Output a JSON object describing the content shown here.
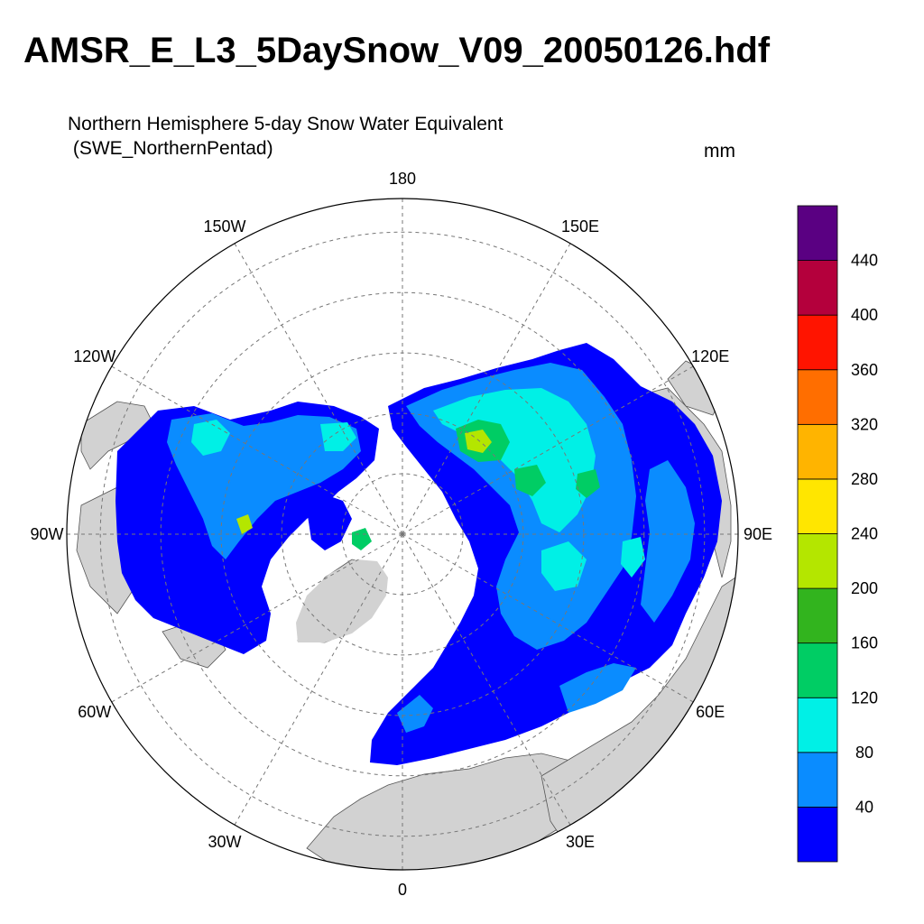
{
  "title": "AMSR_E_L3_5DaySnow_V09_20050126.hdf",
  "subtitle_line1": "Northern Hemisphere 5-day Snow Water Equivalent",
  "subtitle_line2": " (SWE_NorthernPentad)",
  "units": "mm",
  "longitude_labels": [
    {
      "text": "180",
      "lon": 180
    },
    {
      "text": "150E",
      "lon": 150
    },
    {
      "text": "120E",
      "lon": 120
    },
    {
      "text": "90E",
      "lon": 90
    },
    {
      "text": "60E",
      "lon": 60
    },
    {
      "text": "30E",
      "lon": 30
    },
    {
      "text": "0",
      "lon": 0
    },
    {
      "text": "30W",
      "lon": -30
    },
    {
      "text": "60W",
      "lon": -60
    },
    {
      "text": "90W",
      "lon": -90
    },
    {
      "text": "120W",
      "lon": -120
    },
    {
      "text": "150W",
      "lon": -150
    }
  ],
  "colorbar": {
    "levels": [
      "40",
      "80",
      "120",
      "160",
      "200",
      "240",
      "280",
      "320",
      "360",
      "400",
      "440"
    ],
    "colors": [
      "#0000ff",
      "#0a8cff",
      "#00f0e6",
      "#00cd64",
      "#32b41e",
      "#b4e600",
      "#ffe600",
      "#ffb400",
      "#ff6e00",
      "#ff1400",
      "#b4003c",
      "#5a0082"
    ]
  },
  "colors": {
    "land_no_snow": "#d2d2d2",
    "ocean": "#ffffff",
    "grid": "#777777"
  }
}
